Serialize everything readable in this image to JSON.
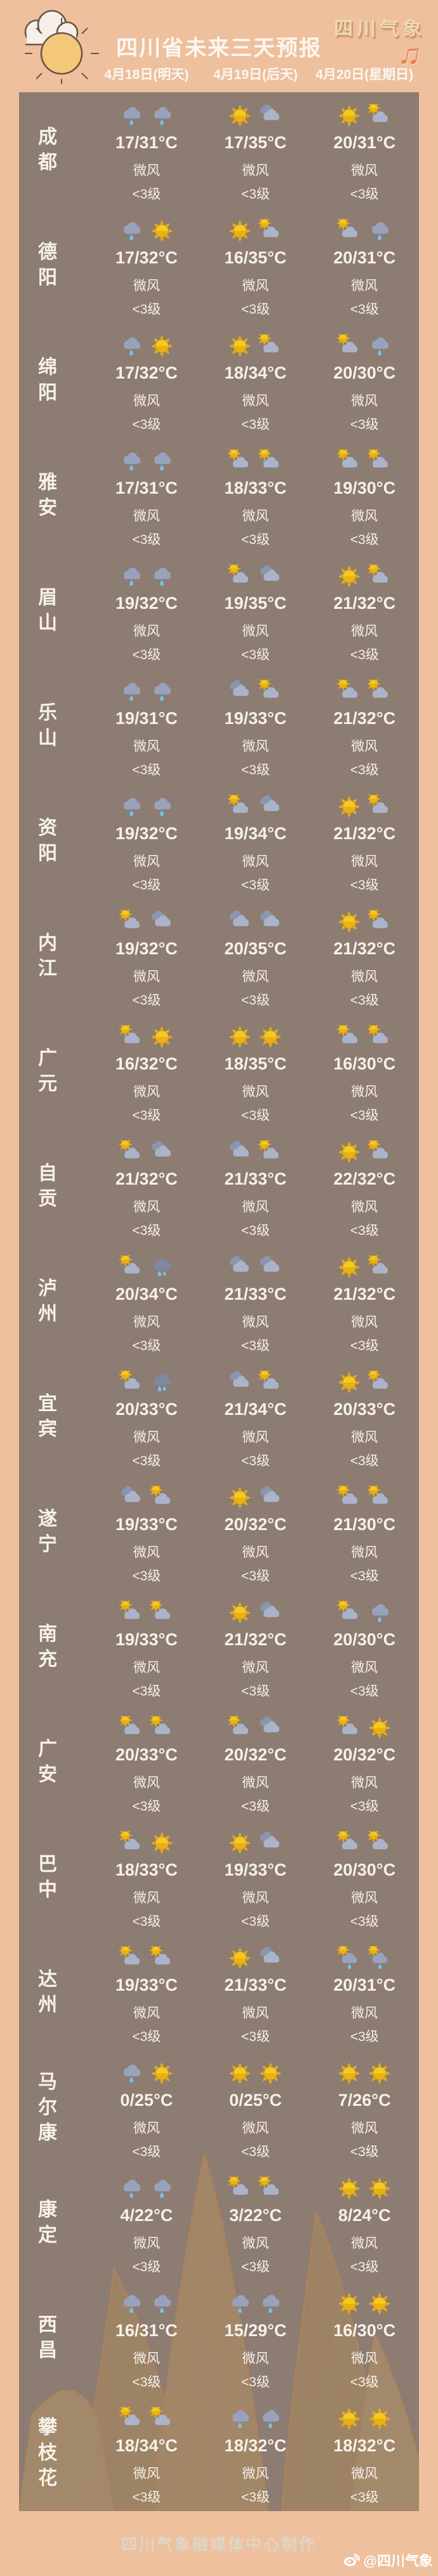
{
  "header": {
    "title": "四川省未来三天预报",
    "brand": "四川气象",
    "music_icon": "♫",
    "dates": [
      "4月18日(明天)",
      "4月19日(后天)",
      "4月20日(星期日)"
    ]
  },
  "table": {
    "wind": "微风",
    "wind_level": "<3级",
    "icon_legend": {
      "rain": "rain-cloud-icon",
      "rain2": "heavy-rain-cloud-icon",
      "sun": "sun-icon",
      "partly": "sun-behind-cloud-icon",
      "cloudy": "clouds-icon",
      "shower": "sun-shower-icon"
    },
    "cities": [
      {
        "name": "成都",
        "days": [
          {
            "icons": [
              "rain",
              "rain"
            ],
            "temp": "17/31°C"
          },
          {
            "icons": [
              "sun",
              "cloudy"
            ],
            "temp": "17/35°C"
          },
          {
            "icons": [
              "sun",
              "partly"
            ],
            "temp": "20/31°C"
          }
        ]
      },
      {
        "name": "德阳",
        "days": [
          {
            "icons": [
              "rain",
              "sun"
            ],
            "temp": "17/32°C"
          },
          {
            "icons": [
              "sun",
              "partly"
            ],
            "temp": "16/35°C"
          },
          {
            "icons": [
              "partly",
              "rain"
            ],
            "temp": "20/31°C"
          }
        ]
      },
      {
        "name": "绵阳",
        "days": [
          {
            "icons": [
              "rain",
              "sun"
            ],
            "temp": "17/32°C"
          },
          {
            "icons": [
              "sun",
              "partly"
            ],
            "temp": "18/34°C"
          },
          {
            "icons": [
              "partly",
              "rain"
            ],
            "temp": "20/30°C"
          }
        ]
      },
      {
        "name": "雅安",
        "days": [
          {
            "icons": [
              "rain",
              "rain"
            ],
            "temp": "17/31°C"
          },
          {
            "icons": [
              "partly",
              "partly"
            ],
            "temp": "18/33°C"
          },
          {
            "icons": [
              "partly",
              "partly"
            ],
            "temp": "19/30°C"
          }
        ]
      },
      {
        "name": "眉山",
        "days": [
          {
            "icons": [
              "rain",
              "rain"
            ],
            "temp": "19/32°C"
          },
          {
            "icons": [
              "partly",
              "cloudy"
            ],
            "temp": "19/35°C"
          },
          {
            "icons": [
              "sun",
              "partly"
            ],
            "temp": "21/32°C"
          }
        ]
      },
      {
        "name": "乐山",
        "days": [
          {
            "icons": [
              "rain",
              "rain"
            ],
            "temp": "19/31°C"
          },
          {
            "icons": [
              "cloudy",
              "partly"
            ],
            "temp": "19/33°C"
          },
          {
            "icons": [
              "partly",
              "partly"
            ],
            "temp": "21/32°C"
          }
        ]
      },
      {
        "name": "资阳",
        "days": [
          {
            "icons": [
              "rain",
              "rain"
            ],
            "temp": "19/32°C"
          },
          {
            "icons": [
              "partly",
              "cloudy"
            ],
            "temp": "19/34°C"
          },
          {
            "icons": [
              "sun",
              "partly"
            ],
            "temp": "21/32°C"
          }
        ]
      },
      {
        "name": "内江",
        "days": [
          {
            "icons": [
              "partly",
              "cloudy"
            ],
            "temp": "19/32°C"
          },
          {
            "icons": [
              "cloudy",
              "cloudy"
            ],
            "temp": "20/35°C"
          },
          {
            "icons": [
              "sun",
              "partly"
            ],
            "temp": "21/32°C"
          }
        ]
      },
      {
        "name": "广元",
        "days": [
          {
            "icons": [
              "partly",
              "sun"
            ],
            "temp": "16/32°C"
          },
          {
            "icons": [
              "sun",
              "sun"
            ],
            "temp": "18/35°C"
          },
          {
            "icons": [
              "partly",
              "partly"
            ],
            "temp": "16/30°C"
          }
        ]
      },
      {
        "name": "自贡",
        "days": [
          {
            "icons": [
              "partly",
              "cloudy"
            ],
            "temp": "21/32°C"
          },
          {
            "icons": [
              "cloudy",
              "partly"
            ],
            "temp": "21/33°C"
          },
          {
            "icons": [
              "sun",
              "partly"
            ],
            "temp": "22/32°C"
          }
        ]
      },
      {
        "name": "泸州",
        "days": [
          {
            "icons": [
              "partly",
              "rain2"
            ],
            "temp": "20/34°C"
          },
          {
            "icons": [
              "cloudy",
              "cloudy"
            ],
            "temp": "21/33°C"
          },
          {
            "icons": [
              "sun",
              "partly"
            ],
            "temp": "21/32°C"
          }
        ]
      },
      {
        "name": "宜宾",
        "days": [
          {
            "icons": [
              "partly",
              "rain2"
            ],
            "temp": "20/33°C"
          },
          {
            "icons": [
              "cloudy",
              "partly"
            ],
            "temp": "21/34°C"
          },
          {
            "icons": [
              "sun",
              "partly"
            ],
            "temp": "20/33°C"
          }
        ]
      },
      {
        "name": "遂宁",
        "days": [
          {
            "icons": [
              "cloudy",
              "partly"
            ],
            "temp": "19/33°C"
          },
          {
            "icons": [
              "sun",
              "cloudy"
            ],
            "temp": "20/32°C"
          },
          {
            "icons": [
              "partly",
              "partly"
            ],
            "temp": "21/30°C"
          }
        ]
      },
      {
        "name": "南充",
        "days": [
          {
            "icons": [
              "partly",
              "partly"
            ],
            "temp": "19/33°C"
          },
          {
            "icons": [
              "sun",
              "cloudy"
            ],
            "temp": "21/32°C"
          },
          {
            "icons": [
              "partly",
              "rain"
            ],
            "temp": "20/30°C"
          }
        ]
      },
      {
        "name": "广安",
        "days": [
          {
            "icons": [
              "partly",
              "partly"
            ],
            "temp": "20/33°C"
          },
          {
            "icons": [
              "partly",
              "cloudy"
            ],
            "temp": "20/32°C"
          },
          {
            "icons": [
              "partly",
              "sun"
            ],
            "temp": "20/32°C"
          }
        ]
      },
      {
        "name": "巴中",
        "days": [
          {
            "icons": [
              "partly",
              "sun"
            ],
            "temp": "18/33°C"
          },
          {
            "icons": [
              "sun",
              "cloudy"
            ],
            "temp": "19/33°C"
          },
          {
            "icons": [
              "partly",
              "partly"
            ],
            "temp": "20/30°C"
          }
        ]
      },
      {
        "name": "达州",
        "days": [
          {
            "icons": [
              "partly",
              "partly"
            ],
            "temp": "19/33°C"
          },
          {
            "icons": [
              "sun",
              "cloudy"
            ],
            "temp": "21/33°C"
          },
          {
            "icons": [
              "shower",
              "shower"
            ],
            "temp": "20/31°C"
          }
        ]
      },
      {
        "name": "马尔康",
        "days": [
          {
            "icons": [
              "rain",
              "sun"
            ],
            "temp": "0/25°C"
          },
          {
            "icons": [
              "sun",
              "sun"
            ],
            "temp": "0/25°C"
          },
          {
            "icons": [
              "sun",
              "sun"
            ],
            "temp": "7/26°C"
          }
        ]
      },
      {
        "name": "康定",
        "days": [
          {
            "icons": [
              "rain",
              "rain"
            ],
            "temp": "4/22°C"
          },
          {
            "icons": [
              "partly",
              "partly"
            ],
            "temp": "3/22°C"
          },
          {
            "icons": [
              "sun",
              "sun"
            ],
            "temp": "8/24°C"
          }
        ]
      },
      {
        "name": "西昌",
        "days": [
          {
            "icons": [
              "rain",
              "rain"
            ],
            "temp": "16/31°C"
          },
          {
            "icons": [
              "rain",
              "rain"
            ],
            "temp": "15/29°C"
          },
          {
            "icons": [
              "sun",
              "sun"
            ],
            "temp": "16/30°C"
          }
        ]
      },
      {
        "name": "攀枝花",
        "days": [
          {
            "icons": [
              "partly",
              "partly"
            ],
            "temp": "18/34°C"
          },
          {
            "icons": [
              "rain",
              "rain"
            ],
            "temp": "18/32°C"
          },
          {
            "icons": [
              "sun",
              "sun"
            ],
            "temp": "18/32°C"
          }
        ]
      }
    ]
  },
  "footer": {
    "credit": "四川气象融媒体中心制作",
    "weibo": "@四川气象"
  },
  "colors": {
    "background": "#eec09e",
    "panel": "#8c7c71",
    "accent_gold": "#efddb2",
    "note_orange": "#e8834a",
    "sun_yellow": "#f7c81d",
    "cloud_gray": "#98a2bc",
    "rain_blue": "#6fc6f2"
  }
}
